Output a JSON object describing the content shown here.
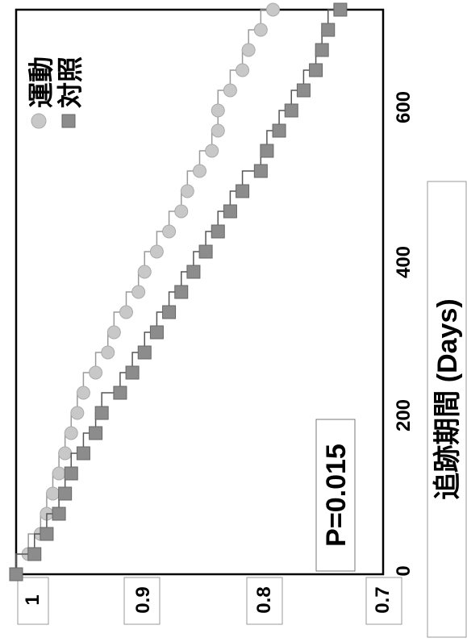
{
  "chart_data": {
    "type": "line",
    "orientation": "rotated-90-ccw",
    "title": "",
    "xlabel": "追跡期間 (Days)",
    "ylabel": "",
    "xlim": [
      0,
      700
    ],
    "ylim": [
      0.7,
      1.0
    ],
    "x_ticks": [
      "0",
      "200",
      "400",
      "600"
    ],
    "y_ticks": [
      "1",
      "0.9",
      "0.8",
      "0.7"
    ],
    "annotation": "P=0.015",
    "legend_position": "top-right",
    "series": [
      {
        "name": "運動",
        "color": "#c8c8c8",
        "marker": "circle",
        "x": [
          0,
          25,
          50,
          75,
          100,
          125,
          150,
          175,
          200,
          225,
          250,
          275,
          300,
          325,
          350,
          375,
          400,
          425,
          450,
          475,
          500,
          525,
          550,
          575,
          600,
          625,
          650,
          675,
          700
        ],
        "y": [
          1.0,
          0.99,
          0.98,
          0.975,
          0.97,
          0.965,
          0.96,
          0.955,
          0.95,
          0.945,
          0.935,
          0.925,
          0.92,
          0.91,
          0.9,
          0.895,
          0.885,
          0.875,
          0.865,
          0.86,
          0.85,
          0.84,
          0.835,
          0.835,
          0.825,
          0.815,
          0.81,
          0.8,
          0.79
        ]
      },
      {
        "name": "対照",
        "color": "#8c8c8c",
        "marker": "square",
        "x": [
          0,
          25,
          50,
          75,
          100,
          125,
          150,
          175,
          200,
          225,
          250,
          275,
          300,
          325,
          350,
          375,
          400,
          425,
          450,
          475,
          500,
          525,
          550,
          575,
          600,
          625,
          650,
          675,
          700
        ],
        "y": [
          1.0,
          0.985,
          0.975,
          0.965,
          0.96,
          0.955,
          0.945,
          0.935,
          0.93,
          0.915,
          0.905,
          0.895,
          0.885,
          0.875,
          0.865,
          0.855,
          0.845,
          0.835,
          0.825,
          0.815,
          0.8,
          0.795,
          0.785,
          0.775,
          0.765,
          0.755,
          0.75,
          0.745,
          0.735
        ]
      }
    ]
  }
}
